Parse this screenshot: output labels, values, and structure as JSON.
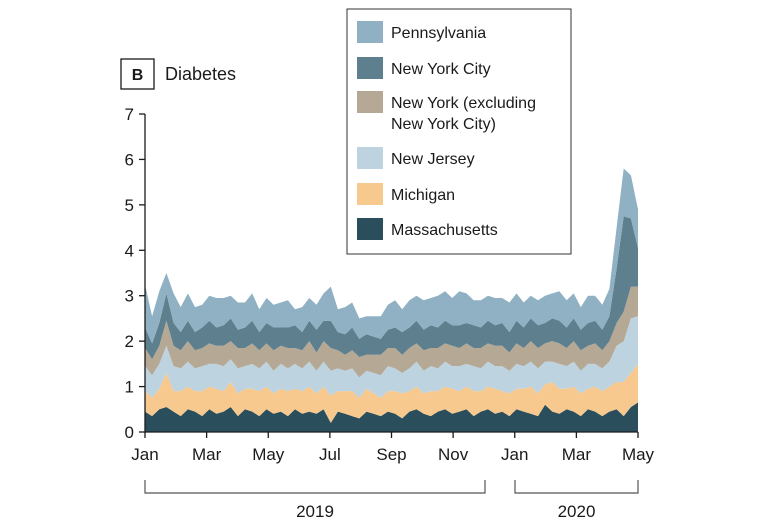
{
  "chart_data": {
    "type": "area",
    "stacked": true,
    "panel_label": "B",
    "title": "Diabetes",
    "xlabel": "",
    "ylabel": "",
    "ylim": [
      0,
      7
    ],
    "y_ticks": [
      0,
      1,
      2,
      3,
      4,
      5,
      6,
      7
    ],
    "x_tick_labels": [
      "Jan",
      "Mar",
      "May",
      "Jul",
      "Sep",
      "Nov",
      "Jan",
      "Mar",
      "May"
    ],
    "year_labels": [
      "2019",
      "2020"
    ],
    "legend_position": "top-right",
    "x_weeks": [
      0,
      1,
      2,
      3,
      4,
      5,
      6,
      7,
      8,
      9,
      10,
      11,
      12,
      13,
      14,
      15,
      16,
      17,
      18,
      19,
      20,
      21,
      22,
      23,
      24,
      25,
      26,
      27,
      28,
      29,
      30,
      31,
      32,
      33,
      34,
      35,
      36,
      37,
      38,
      39,
      40,
      41,
      42,
      43,
      44,
      45,
      46,
      47,
      48,
      49,
      50,
      51,
      52,
      53,
      54,
      55,
      56,
      57,
      58,
      59,
      60,
      61,
      62,
      63,
      64,
      65,
      66,
      67,
      68,
      69
    ],
    "series": [
      {
        "name": "Massachusetts",
        "color": "#2a4e5c",
        "values": [
          0.45,
          0.35,
          0.5,
          0.55,
          0.45,
          0.35,
          0.5,
          0.45,
          0.35,
          0.5,
          0.4,
          0.45,
          0.55,
          0.35,
          0.5,
          0.45,
          0.35,
          0.5,
          0.4,
          0.45,
          0.35,
          0.5,
          0.4,
          0.45,
          0.4,
          0.5,
          0.2,
          0.45,
          0.4,
          0.35,
          0.3,
          0.45,
          0.4,
          0.35,
          0.45,
          0.4,
          0.3,
          0.45,
          0.5,
          0.4,
          0.35,
          0.45,
          0.5,
          0.4,
          0.45,
          0.5,
          0.35,
          0.45,
          0.5,
          0.4,
          0.45,
          0.35,
          0.5,
          0.45,
          0.4,
          0.35,
          0.6,
          0.45,
          0.4,
          0.5,
          0.45,
          0.35,
          0.5,
          0.45,
          0.35,
          0.45,
          0.5,
          0.35,
          0.55,
          0.65
        ]
      },
      {
        "name": "Michigan",
        "color": "#f7c98e",
        "values": [
          0.45,
          0.4,
          0.45,
          0.75,
          0.45,
          0.55,
          0.5,
          0.45,
          0.55,
          0.5,
          0.55,
          0.45,
          0.55,
          0.5,
          0.45,
          0.5,
          0.55,
          0.5,
          0.45,
          0.5,
          0.55,
          0.45,
          0.5,
          0.55,
          0.45,
          0.5,
          0.6,
          0.45,
          0.5,
          0.55,
          0.45,
          0.5,
          0.45,
          0.4,
          0.45,
          0.5,
          0.55,
          0.45,
          0.5,
          0.45,
          0.55,
          0.45,
          0.5,
          0.55,
          0.45,
          0.5,
          0.55,
          0.45,
          0.5,
          0.55,
          0.45,
          0.5,
          0.45,
          0.5,
          0.6,
          0.5,
          0.45,
          0.65,
          0.55,
          0.45,
          0.55,
          0.5,
          0.45,
          0.55,
          0.55,
          0.55,
          0.6,
          0.75,
          0.75,
          0.85
        ]
      },
      {
        "name": "New Jersey",
        "color": "#bdd3e0",
        "values": [
          0.55,
          0.5,
          0.55,
          0.6,
          0.55,
          0.5,
          0.55,
          0.5,
          0.55,
          0.5,
          0.55,
          0.55,
          0.5,
          0.55,
          0.5,
          0.55,
          0.5,
          0.55,
          0.5,
          0.55,
          0.5,
          0.55,
          0.5,
          0.55,
          0.5,
          0.55,
          0.55,
          0.5,
          0.45,
          0.5,
          0.45,
          0.4,
          0.45,
          0.5,
          0.55,
          0.5,
          0.45,
          0.5,
          0.55,
          0.5,
          0.55,
          0.5,
          0.55,
          0.5,
          0.55,
          0.5,
          0.55,
          0.5,
          0.55,
          0.5,
          0.55,
          0.5,
          0.55,
          0.5,
          0.55,
          0.55,
          0.5,
          0.45,
          0.55,
          0.5,
          0.55,
          0.5,
          0.55,
          0.5,
          0.5,
          0.55,
          0.8,
          0.9,
          1.2,
          1.05
        ]
      },
      {
        "name": "New York (excluding New York City)",
        "color": "#b5a996",
        "values": [
          0.4,
          0.35,
          0.4,
          0.55,
          0.45,
          0.4,
          0.45,
          0.4,
          0.4,
          0.45,
          0.4,
          0.45,
          0.4,
          0.45,
          0.4,
          0.45,
          0.4,
          0.4,
          0.45,
          0.4,
          0.45,
          0.35,
          0.4,
          0.45,
          0.4,
          0.45,
          0.5,
          0.4,
          0.35,
          0.4,
          0.45,
          0.35,
          0.4,
          0.45,
          0.4,
          0.45,
          0.4,
          0.45,
          0.4,
          0.45,
          0.4,
          0.45,
          0.4,
          0.45,
          0.4,
          0.45,
          0.4,
          0.45,
          0.4,
          0.45,
          0.45,
          0.4,
          0.45,
          0.4,
          0.45,
          0.45,
          0.4,
          0.45,
          0.45,
          0.4,
          0.45,
          0.45,
          0.4,
          0.45,
          0.4,
          0.45,
          0.5,
          0.65,
          0.7,
          0.65
        ]
      },
      {
        "name": "New York City",
        "color": "#5d7f8e",
        "values": [
          0.45,
          0.35,
          0.5,
          0.6,
          0.5,
          0.4,
          0.45,
          0.4,
          0.45,
          0.5,
          0.4,
          0.45,
          0.5,
          0.4,
          0.45,
          0.5,
          0.4,
          0.45,
          0.5,
          0.4,
          0.45,
          0.5,
          0.4,
          0.45,
          0.5,
          0.45,
          0.6,
          0.4,
          0.45,
          0.5,
          0.4,
          0.45,
          0.4,
          0.35,
          0.4,
          0.45,
          0.5,
          0.45,
          0.5,
          0.45,
          0.5,
          0.45,
          0.5,
          0.45,
          0.5,
          0.45,
          0.5,
          0.45,
          0.5,
          0.45,
          0.5,
          0.45,
          0.5,
          0.45,
          0.5,
          0.5,
          0.45,
          0.5,
          0.5,
          0.45,
          0.5,
          0.45,
          0.5,
          0.5,
          0.45,
          0.55,
          1.2,
          2.1,
          1.5,
          0.85
        ]
      },
      {
        "name": "Pennsylvania",
        "color": "#8fb1c3",
        "values": [
          0.95,
          0.6,
          0.7,
          0.45,
          0.65,
          0.55,
          0.6,
          0.55,
          0.5,
          0.55,
          0.65,
          0.6,
          0.5,
          0.6,
          0.55,
          0.6,
          0.5,
          0.55,
          0.5,
          0.55,
          0.6,
          0.35,
          0.55,
          0.5,
          0.55,
          0.6,
          0.75,
          0.5,
          0.6,
          0.55,
          0.45,
          0.4,
          0.45,
          0.5,
          0.55,
          0.6,
          0.5,
          0.6,
          0.55,
          0.65,
          0.6,
          0.7,
          0.65,
          0.6,
          0.75,
          0.65,
          0.55,
          0.6,
          0.55,
          0.6,
          0.55,
          0.65,
          0.6,
          0.55,
          0.5,
          0.55,
          0.6,
          0.55,
          0.65,
          0.6,
          0.55,
          0.5,
          0.6,
          0.55,
          0.55,
          0.6,
          0.9,
          1.05,
          0.95,
          0.85
        ]
      }
    ]
  }
}
